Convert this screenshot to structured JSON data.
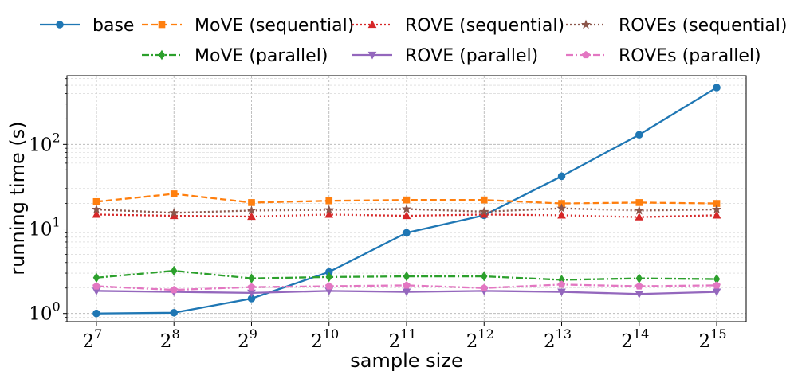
{
  "chart_data": {
    "type": "line",
    "xlabel": "sample size",
    "ylabel": "running time (s)",
    "y_scale": "log",
    "ylim": [
      0.8,
      650
    ],
    "grid": true,
    "legend_placement": "top, above plot",
    "x_tick_base": "2",
    "x_exponents": [
      "7",
      "8",
      "9",
      "10",
      "11",
      "12",
      "13",
      "14",
      "15"
    ],
    "x": [
      128,
      256,
      512,
      1024,
      2048,
      4096,
      8192,
      16384,
      32768
    ],
    "y_ticks": [
      {
        "base": "10",
        "exp": "0",
        "value": 1
      },
      {
        "base": "10",
        "exp": "1",
        "value": 10
      },
      {
        "base": "10",
        "exp": "2",
        "value": 100
      }
    ],
    "series": [
      {
        "name": "base",
        "color": "#1f77b4",
        "dash": "solid",
        "marker": "circle",
        "values": [
          1.0,
          1.02,
          1.5,
          3.1,
          9.0,
          14.5,
          42,
          130,
          470
        ]
      },
      {
        "name": "MoVE (sequential)",
        "color": "#ff7f0e",
        "dash": "dashed",
        "marker": "square",
        "values": [
          21,
          26,
          20.5,
          21.5,
          22,
          22,
          20,
          20.5,
          20
        ]
      },
      {
        "name": "MoVE (parallel)",
        "color": "#2ca02c",
        "dash": "dashdot",
        "marker": "diamond",
        "values": [
          2.65,
          3.2,
          2.6,
          2.7,
          2.75,
          2.75,
          2.5,
          2.6,
          2.55
        ]
      },
      {
        "name": "ROVE (sequential)",
        "color": "#d62728",
        "dash": "dotted",
        "marker": "triangle-up",
        "values": [
          14.8,
          14.3,
          14.0,
          14.8,
          14.3,
          14.8,
          14.5,
          13.8,
          14.5
        ]
      },
      {
        "name": "ROVE (parallel)",
        "color": "#9467bd",
        "dash": "solid",
        "marker": "triangle-down",
        "values": [
          1.85,
          1.8,
          1.75,
          1.85,
          1.8,
          1.85,
          1.8,
          1.7,
          1.8
        ]
      },
      {
        "name": "ROVEs (sequential)",
        "color": "#8c564b",
        "dash": "dotted",
        "marker": "star",
        "values": [
          17,
          15.5,
          16.5,
          16.8,
          17.2,
          16,
          17.5,
          16.5,
          17
        ]
      },
      {
        "name": "ROVEs (parallel)",
        "color": "#e377c2",
        "dash": "dashdot",
        "marker": "pentagon",
        "values": [
          2.1,
          1.9,
          2.05,
          2.1,
          2.15,
          2.0,
          2.2,
          2.1,
          2.15
        ]
      }
    ]
  }
}
